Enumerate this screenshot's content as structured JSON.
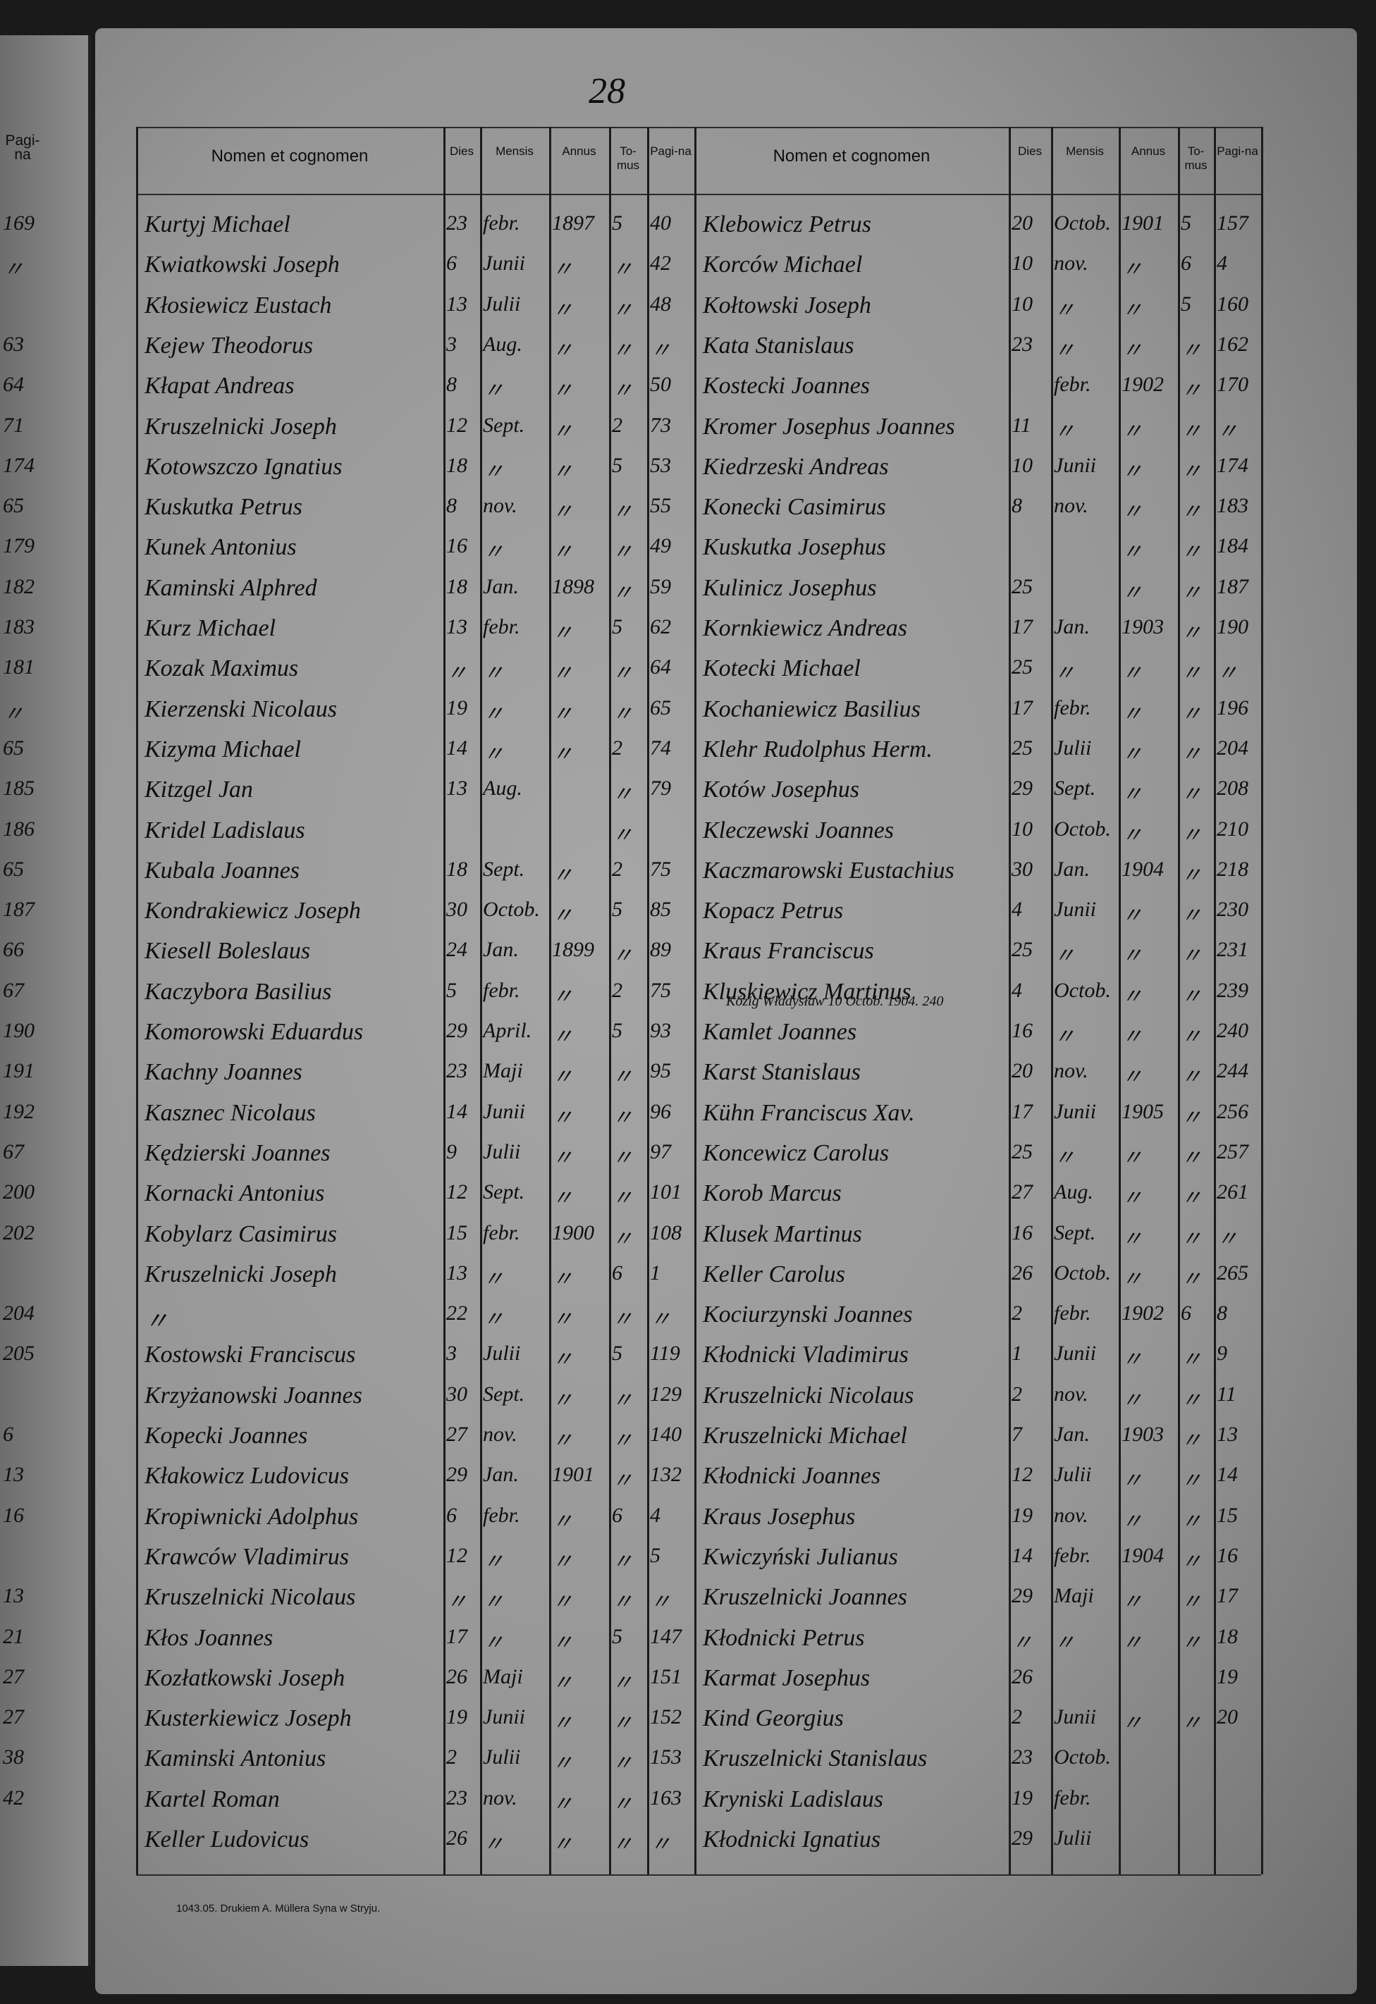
{
  "page_number": "28",
  "left_margin": {
    "header": "Pagi-na",
    "numbers": [
      "169",
      "〃",
      null,
      "63",
      "64",
      "71",
      "174",
      "65",
      "179",
      "182",
      "183",
      "181",
      "〃",
      "65",
      "185",
      "186",
      "65",
      "187",
      "66",
      "67",
      "190",
      "191",
      "192",
      "67",
      "200",
      "202",
      null,
      "204",
      "205",
      null,
      "6",
      "13",
      "16",
      null,
      "13",
      "21",
      "27",
      "27",
      "38",
      "42",
      null
    ]
  },
  "headers": [
    "Nomen et cognomen",
    "Dies",
    "Mensis",
    "Annus",
    "To-mus",
    "Pagi-na"
  ],
  "table": {
    "left_rows": [
      [
        "Kurtyj Michael",
        "23",
        "febr.",
        "1897",
        "5",
        "40"
      ],
      [
        "Kwiatkowski Joseph",
        "6",
        "Junii",
        "〃",
        "〃",
        "42"
      ],
      [
        "Kłosiewicz Eustach",
        "13",
        "Julii",
        "〃",
        "〃",
        "48"
      ],
      [
        "Kejew Theodorus",
        "3",
        "Aug.",
        "〃",
        "〃",
        "〃"
      ],
      [
        "Kłapat Andreas",
        "8",
        "〃",
        "〃",
        "〃",
        "50"
      ],
      [
        "Kruszelnicki Joseph",
        "12",
        "Sept.",
        "〃",
        "2",
        "73"
      ],
      [
        "Kotowszczo Ignatius",
        "18",
        "〃",
        "〃",
        "5",
        "53"
      ],
      [
        "Kuskutka Petrus",
        "8",
        "nov.",
        "〃",
        "〃",
        "55"
      ],
      [
        "Kunek Antonius",
        "16",
        "〃",
        "〃",
        "〃",
        "49"
      ],
      [
        "Kaminski Alphred",
        "18",
        "Jan.",
        "1898",
        "〃",
        "59"
      ],
      [
        "Kurz Michael",
        "13",
        "febr.",
        "〃",
        "5",
        "62"
      ],
      [
        "Kozak Maximus",
        "〃",
        "〃",
        "〃",
        "〃",
        "64"
      ],
      [
        "Kierzenski Nicolaus",
        "19",
        "〃",
        "〃",
        "〃",
        "65"
      ],
      [
        "Kizyma Michael",
        "14",
        "〃",
        "〃",
        "2",
        "74"
      ],
      [
        "Kitzgel Jan",
        "13",
        "Aug.",
        null,
        "〃",
        "79"
      ],
      [
        "Kridel Ladislaus",
        null,
        null,
        null,
        "〃",
        null
      ],
      [
        "Kubala Joannes",
        "18",
        "Sept.",
        "〃",
        "2",
        "75"
      ],
      [
        "Kondrakiewicz Joseph",
        "30",
        "Octob.",
        "〃",
        "5",
        "85"
      ],
      [
        "Kiesell Boleslaus",
        "24",
        "Jan.",
        "1899",
        "〃",
        "89"
      ],
      [
        "Kaczybora Basilius",
        "5",
        "febr.",
        "〃",
        "2",
        "75"
      ],
      [
        "Komorowski Eduardus",
        "29",
        "April.",
        "〃",
        "5",
        "93"
      ],
      [
        "Kachny Joannes",
        "23",
        "Maji",
        "〃",
        "〃",
        "95"
      ],
      [
        "Kasznec Nicolaus",
        "14",
        "Junii",
        "〃",
        "〃",
        "96"
      ],
      [
        "Kędzierski Joannes",
        "9",
        "Julii",
        "〃",
        "〃",
        "97"
      ],
      [
        "Kornacki Antonius",
        "12",
        "Sept.",
        "〃",
        "〃",
        "101"
      ],
      [
        "Kobylarz Casimirus",
        "15",
        "febr.",
        "1900",
        "〃",
        "108"
      ],
      [
        "Kruszelnicki Joseph",
        "13",
        "〃",
        "〃",
        "6",
        "1"
      ],
      [
        "〃",
        "22",
        "〃",
        "〃",
        "〃",
        "〃"
      ],
      [
        "Kostowski Franciscus",
        "3",
        "Julii",
        "〃",
        "5",
        "119"
      ],
      [
        "Krzyżanowski Joannes",
        "30",
        "Sept.",
        "〃",
        "〃",
        "129"
      ],
      [
        "Kopecki Joannes",
        "27",
        "nov.",
        "〃",
        "〃",
        "140"
      ],
      [
        "Kłakowicz Ludovicus",
        "29",
        "Jan.",
        "1901",
        "〃",
        "132"
      ],
      [
        "Kropiwnicki Adolphus",
        "6",
        "febr.",
        "〃",
        "6",
        "4"
      ],
      [
        "Krawców Vladimirus",
        "12",
        "〃",
        "〃",
        "〃",
        "5"
      ],
      [
        "Kruszelnicki Nicolaus",
        "〃",
        "〃",
        "〃",
        "〃",
        "〃"
      ],
      [
        "Kłos Joannes",
        "17",
        "〃",
        "〃",
        "5",
        "147"
      ],
      [
        "Kozłatkowski Joseph",
        "26",
        "Maji",
        "〃",
        "〃",
        "151"
      ],
      [
        "Kusterkiewicz Joseph",
        "19",
        "Junii",
        "〃",
        "〃",
        "152"
      ],
      [
        "Kaminski Antonius",
        "2",
        "Julii",
        "〃",
        "〃",
        "153"
      ],
      [
        "Kartel Roman",
        "23",
        "nov.",
        "〃",
        "〃",
        "163"
      ],
      [
        "Keller Ludovicus",
        "26",
        "〃",
        "〃",
        "〃",
        "〃"
      ]
    ],
    "right_rows": [
      [
        "Klebowicz Petrus",
        "20",
        "Octob.",
        "1901",
        "5",
        "157"
      ],
      [
        "Korców Michael",
        "10",
        "nov.",
        "〃",
        "6",
        "4"
      ],
      [
        "Kołtowski Joseph",
        "10",
        "〃",
        "〃",
        "5",
        "160"
      ],
      [
        "Kata Stanislaus",
        "23",
        "〃",
        "〃",
        "〃",
        "162"
      ],
      [
        "Kostecki Joannes",
        null,
        "febr.",
        "1902",
        "〃",
        "170"
      ],
      [
        "Kromer Josephus Joannes",
        "11",
        "〃",
        "〃",
        "〃",
        "〃"
      ],
      [
        "Kiedrzeski Andreas",
        "10",
        "Junii",
        "〃",
        "〃",
        "174"
      ],
      [
        "Konecki Casimirus",
        "8",
        "nov.",
        "〃",
        "〃",
        "183"
      ],
      [
        "Kuskutka Josephus",
        null,
        null,
        "〃",
        "〃",
        "184"
      ],
      [
        "Kulinicz Josephus",
        "25",
        null,
        "〃",
        "〃",
        "187"
      ],
      [
        "Kornkiewicz Andreas",
        "17",
        "Jan.",
        "1903",
        "〃",
        "190"
      ],
      [
        "Kotecki Michael",
        "25",
        "〃",
        "〃",
        "〃",
        "〃"
      ],
      [
        "Kochaniewicz Basilius",
        "17",
        "febr.",
        "〃",
        "〃",
        "196"
      ],
      [
        "Klehr Rudolphus Herm.",
        "25",
        "Julii",
        "〃",
        "〃",
        "204"
      ],
      [
        "Kotów Josephus",
        "29",
        "Sept.",
        "〃",
        "〃",
        "208"
      ],
      [
        "Kleczewski Joannes",
        "10",
        "Octob.",
        "〃",
        "〃",
        "210"
      ],
      [
        "Kaczmarowski Eustachius",
        "30",
        "Jan.",
        "1904",
        "〃",
        "218"
      ],
      [
        "Kopacz Petrus",
        "4",
        "Junii",
        "〃",
        "〃",
        "230"
      ],
      [
        "Kraus Franciscus",
        "25",
        "〃",
        "〃",
        "〃",
        "231"
      ],
      [
        "Kluskiewicz Martinus",
        "4",
        "Octob.",
        "〃",
        "〃",
        "239"
      ],
      [
        "Kamlet Joannes",
        "16",
        "〃",
        "〃",
        "〃",
        "240"
      ],
      [
        "Karst Stanislaus",
        "20",
        "nov.",
        "〃",
        "〃",
        "244"
      ],
      [
        "Kühn Franciscus Xav.",
        "17",
        "Junii",
        "1905",
        "〃",
        "256"
      ],
      [
        "Koncewicz Carolus",
        "25",
        "〃",
        "〃",
        "〃",
        "257"
      ],
      [
        "Korob Marcus",
        "27",
        "Aug.",
        "〃",
        "〃",
        "261"
      ],
      [
        "Klusek Martinus",
        "16",
        "Sept.",
        "〃",
        "〃",
        "〃"
      ],
      [
        "Keller Carolus",
        "26",
        "Octob.",
        "〃",
        "〃",
        "265"
      ],
      [
        "Kociurzynski Joannes",
        "2",
        "febr.",
        "1902",
        "6",
        "8"
      ],
      [
        "Kłodnicki Vladimirus",
        "1",
        "Junii",
        "〃",
        "〃",
        "9"
      ],
      [
        "Kruszelnicki Nicolaus",
        "2",
        "nov.",
        "〃",
        "〃",
        "11"
      ],
      [
        "Kruszelnicki Michael",
        "7",
        "Jan.",
        "1903",
        "〃",
        "13"
      ],
      [
        "Kłodnicki Joannes",
        "12",
        "Julii",
        "〃",
        "〃",
        "14"
      ],
      [
        "Kraus Josephus",
        "19",
        "nov.",
        "〃",
        "〃",
        "15"
      ],
      [
        "Kwiczyński Julianus",
        "14",
        "febr.",
        "1904",
        "〃",
        "16"
      ],
      [
        "Kruszelnicki Joannes",
        "29",
        "Maji",
        "〃",
        "〃",
        "17"
      ],
      [
        "Kłodnicki Petrus",
        "〃",
        "〃",
        "〃",
        "〃",
        "18"
      ],
      [
        "Karmat Josephus",
        "26",
        null,
        null,
        null,
        "19"
      ],
      [
        "Kind Georgius",
        "2",
        "Junii",
        "〃",
        "〃",
        "20"
      ],
      [
        "Kruszelnicki Stanislaus",
        "23",
        "Octob.",
        null,
        null,
        null
      ],
      [
        "Kryniski Ladislaus",
        "19",
        "febr.",
        null,
        null,
        null
      ],
      [
        "Kłodnicki Ignatius",
        "29",
        "Julii",
        null,
        null,
        null
      ]
    ]
  },
  "annotation": "Kózig Władysław 10 Octob. 1904. 240",
  "footer": "1043.05. Drukiem A. Müllera Syna w Stryju."
}
